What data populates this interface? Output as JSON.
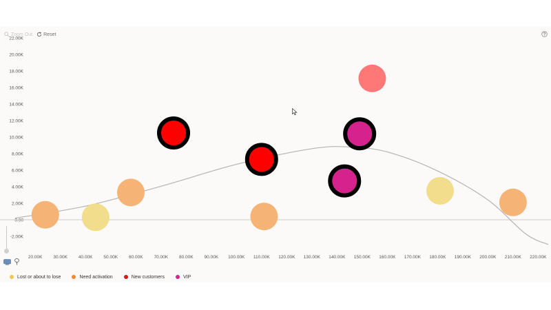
{
  "toolbar": {
    "zoom_out_label": "Zoom Out",
    "reset_label": "Reset"
  },
  "colors": {
    "lost": "#f2dd8c",
    "activation": "#f5b375",
    "new": "#ff0000",
    "vip": "#d6228c",
    "highlight": "#ff7878",
    "curve": "#b3b3b3",
    "axis": "#c9c9c9",
    "ring": "#000000"
  },
  "legend": {
    "items": [
      {
        "label": "Lost or about to lose",
        "color": "#f2c94c"
      },
      {
        "label": "Need activation",
        "color": "#ef8a32"
      },
      {
        "label": "New customers",
        "color": "#d11a1a"
      },
      {
        "label": "VIP",
        "color": "#cc2a8a"
      }
    ]
  },
  "chart_data": {
    "type": "scatter",
    "x": {
      "ticks": [
        "20.00K",
        "30.00K",
        "40.00K",
        "50.00K",
        "60.00K",
        "70.00K",
        "80.00K",
        "90.00K",
        "100.00K",
        "110.00K",
        "120.00K",
        "130.00K",
        "140.00K",
        "150.00K",
        "160.00K",
        "170.00K",
        "180.00K",
        "190.00K",
        "200.00K",
        "210.00K",
        "220.00K"
      ],
      "range": [
        12000,
        224000
      ]
    },
    "y": {
      "ticks": [
        "-2.00K",
        "0.00",
        "2.00K",
        "4.00K",
        "6.00K",
        "8.00K",
        "10.00K",
        "12.00K",
        "14.00K",
        "16.00K",
        "18.00K",
        "20.00K",
        "22.00K"
      ],
      "range": [
        -3000,
        22000
      ]
    },
    "series": [
      {
        "name": "Lost or about to lose",
        "points": [
          [
            44000,
            300
          ],
          [
            181000,
            3500
          ]
        ]
      },
      {
        "name": "Need activation",
        "points": [
          [
            24000,
            600
          ],
          [
            58000,
            3300
          ],
          [
            111000,
            400
          ],
          [
            210000,
            2100
          ]
        ]
      },
      {
        "name": "New customers",
        "points": [
          [
            75000,
            10500
          ],
          [
            110000,
            7300
          ]
        ]
      },
      {
        "name": "VIP",
        "points": [
          [
            143000,
            4700
          ],
          [
            149000,
            10400
          ]
        ]
      }
    ],
    "highlighted_point": [
      154000,
      17100
    ],
    "selected": [
      [
        75000,
        10500
      ],
      [
        110000,
        7300
      ],
      [
        143000,
        4700
      ],
      [
        149000,
        10400
      ]
    ],
    "trend_curve": [
      [
        12000,
        200
      ],
      [
        40000,
        1650
      ],
      [
        70000,
        4050
      ],
      [
        100000,
        6700
      ],
      [
        130000,
        8600
      ],
      [
        145000,
        8800
      ],
      [
        160000,
        8200
      ],
      [
        180000,
        5900
      ],
      [
        200000,
        2400
      ],
      [
        215000,
        -1700
      ],
      [
        224000,
        -3000
      ]
    ],
    "grid": false,
    "legend_position": "bottom-left"
  }
}
